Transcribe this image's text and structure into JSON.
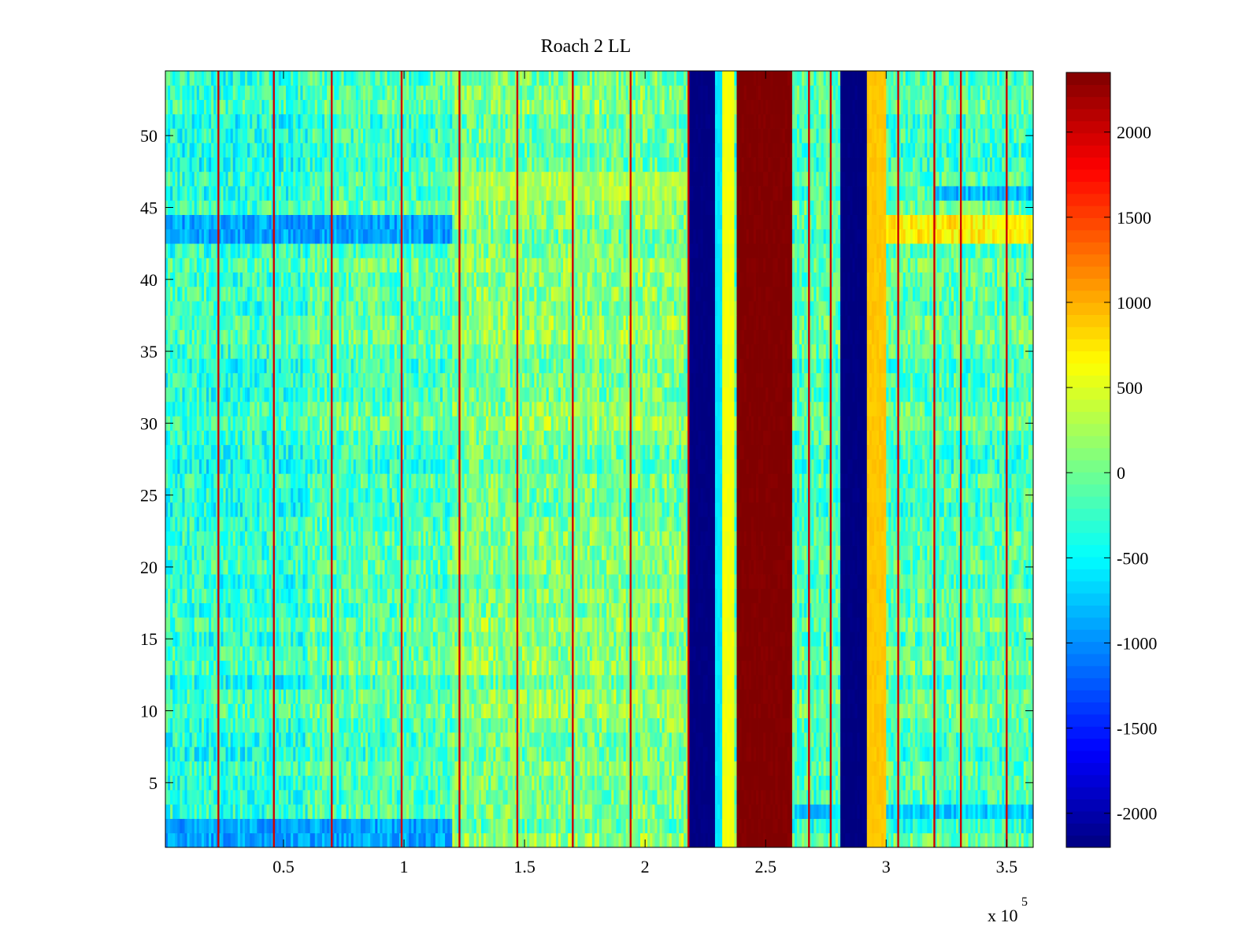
{
  "chart_data": {
    "type": "heatmap",
    "title": "Roach 2 LL",
    "xlabel": "",
    "ylabel": "",
    "x_range": [
      1000,
      361000
    ],
    "y_range": [
      0.5,
      54.5
    ],
    "x_ticks": [
      50000,
      100000,
      150000,
      200000,
      250000,
      300000,
      350000
    ],
    "x_tick_labels": [
      "0.5",
      "1",
      "1.5",
      "2",
      "2.5",
      "3",
      "3.5"
    ],
    "x_exponent_label": "x 10",
    "x_exponent": "5",
    "y_ticks": [
      5,
      10,
      15,
      20,
      25,
      30,
      35,
      40,
      45,
      50
    ],
    "y_tick_labels": [
      "5",
      "10",
      "15",
      "20",
      "25",
      "30",
      "35",
      "40",
      "45",
      "50"
    ],
    "rows": 54,
    "colorbar": {
      "range": [
        -2200,
        2350
      ],
      "ticks": [
        -2000,
        -1500,
        -1000,
        -500,
        0,
        500,
        1000,
        1500,
        2000
      ],
      "tick_labels": [
        "-2000",
        "-1500",
        "-1000",
        "-500",
        "0",
        "500",
        "1000",
        "1500",
        "2000"
      ],
      "colormap": "jet"
    },
    "background_level": -150,
    "bands": [
      {
        "x_start": 218000,
        "x_end": 229000,
        "value": -2200
      },
      {
        "x_start": 229000,
        "x_end": 232000,
        "value": -600
      },
      {
        "x_start": 232000,
        "x_end": 237000,
        "value": 600
      },
      {
        "x_start": 238000,
        "x_end": 261000,
        "value": 2350
      },
      {
        "x_start": 281000,
        "x_end": 292000,
        "value": -2200
      },
      {
        "x_start": 292000,
        "x_end": 300000,
        "value": 900
      }
    ],
    "spike_columns_x": [
      23000,
      46000,
      70000,
      99000,
      123000,
      147000,
      170000,
      194000,
      218000,
      268000,
      277000,
      305000,
      320000,
      331000,
      350000
    ],
    "row_anomalies": [
      {
        "rows": [
          1,
          2
        ],
        "x_start": 1000,
        "x_end": 120000,
        "value": -900
      },
      {
        "rows": [
          3
        ],
        "x_start": 262000,
        "x_end": 361000,
        "value": -700
      },
      {
        "rows": [
          43,
          44
        ],
        "x_start": 1000,
        "x_end": 120000,
        "value": -900
      },
      {
        "rows": [
          43,
          44
        ],
        "x_start": 293000,
        "x_end": 361000,
        "value": 700
      },
      {
        "rows": [
          46,
          47
        ],
        "x_start": 120000,
        "x_end": 220000,
        "value": 300
      },
      {
        "rows": [
          46
        ],
        "x_start": 320000,
        "x_end": 361000,
        "value": -800
      }
    ]
  }
}
